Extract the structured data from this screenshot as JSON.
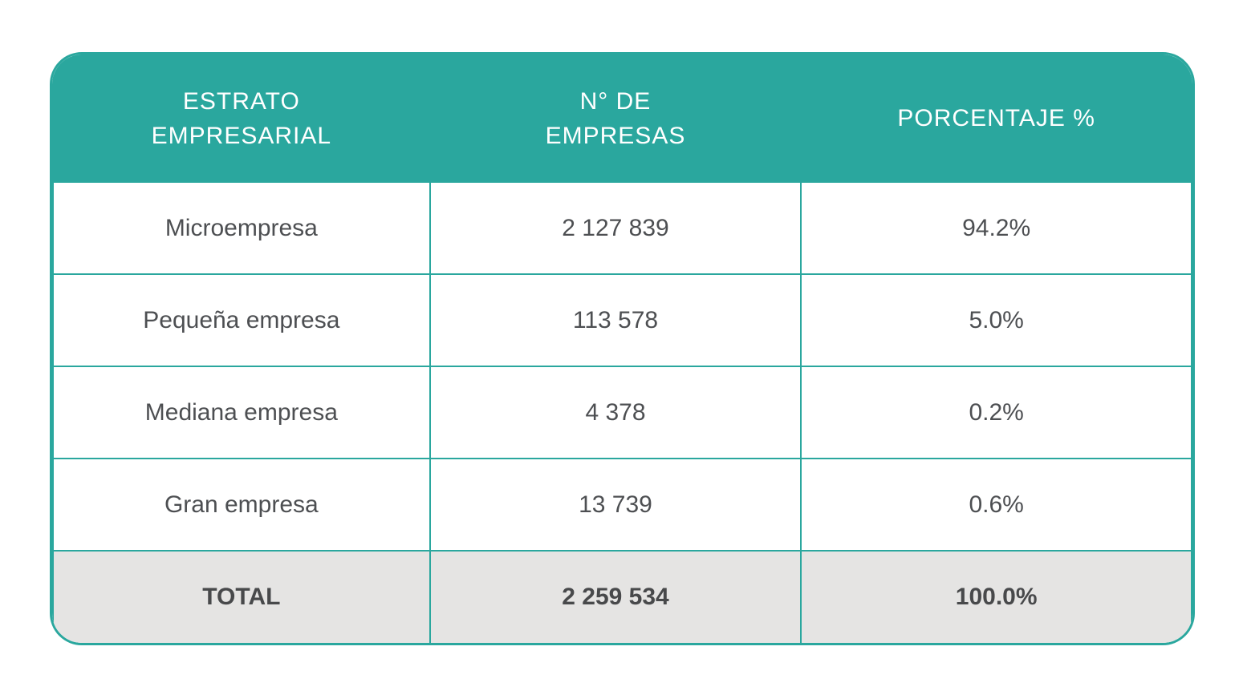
{
  "table": {
    "header": [
      {
        "label": "ESTRATO\nEMPRESARIAL"
      },
      {
        "label": "N° DE\nEMPRESAS"
      },
      {
        "label": "PORCENTAJE %"
      }
    ],
    "rows": [
      {
        "estrato": "Microempresa",
        "empresas": "2 127 839",
        "porcentaje": "94.2%"
      },
      {
        "estrato": "Pequeña empresa",
        "empresas": "113 578",
        "porcentaje": "5.0%"
      },
      {
        "estrato": "Mediana empresa",
        "empresas": "4 378",
        "porcentaje": "0.2%"
      },
      {
        "estrato": "Gran empresa",
        "empresas": "13 739",
        "porcentaje": "0.6%"
      }
    ],
    "total": {
      "estrato": "TOTAL",
      "empresas": "2 259 534",
      "porcentaje": "100.0%"
    }
  },
  "colors": {
    "header_bg": "#2aa79e",
    "header_text": "#ffffff",
    "grid_border": "#2aa79e",
    "body_text": "#4d4f52",
    "total_row_bg": "#e5e4e3",
    "total_row_text": "#48494b",
    "page_bg": "#ffffff"
  },
  "chart_data": {
    "type": "table",
    "columns": [
      "ESTRATO EMPRESARIAL",
      "N° DE EMPRESAS",
      "PORCENTAJE %"
    ],
    "rows": [
      [
        "Microempresa",
        2127839,
        94.2
      ],
      [
        "Pequeña empresa",
        113578,
        5.0
      ],
      [
        "Mediana empresa",
        4378,
        0.2
      ],
      [
        "Gran empresa",
        13739,
        0.6
      ],
      [
        "TOTAL",
        2259534,
        100.0
      ]
    ],
    "notes": "Number of enterprises by business stratum with percentage share; thousands separated by spaces; TOTAL row highlighted."
  }
}
